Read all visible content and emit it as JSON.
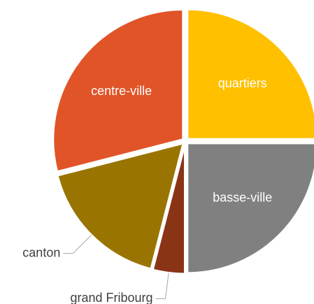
{
  "chart_data": {
    "type": "pie",
    "categories": [
      "quartiers",
      "basse-ville",
      "grand Fribourg",
      "canton",
      "centre-ville"
    ],
    "values": [
      25,
      25,
      4,
      17,
      29
    ],
    "colors": [
      "#ffc000",
      "#808080",
      "#8a3416",
      "#9a7400",
      "#e05428"
    ]
  }
}
